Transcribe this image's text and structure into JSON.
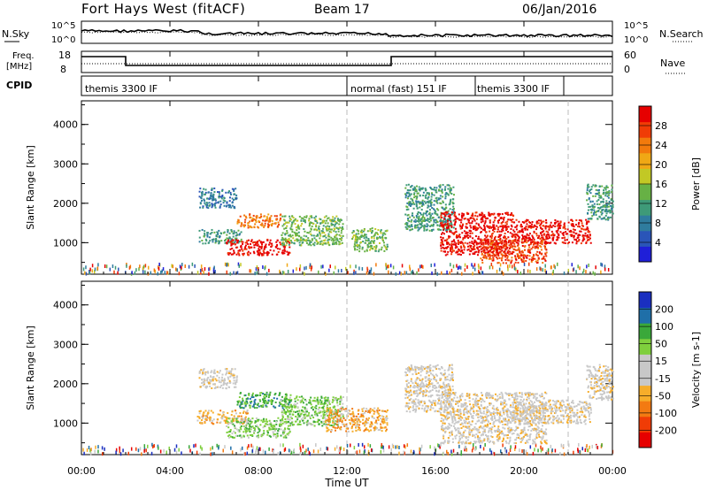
{
  "header": {
    "station": "Fort Hays West (fitACF)",
    "beam": "Beam 17",
    "date": "06/Jan/2016"
  },
  "panel_labels": {
    "nsky": "N.Sky",
    "nsearch": "N.Search",
    "freq_line1": "Freq.",
    "freq_line2": "[MHz]",
    "nave": "Nave",
    "cpid": "CPID"
  },
  "noise_ticks": {
    "top": "10^5",
    "bottom": "10^0"
  },
  "freq_ticks": {
    "left_top": "18",
    "left_bottom": "8",
    "right_top": "60",
    "right_bottom": "0"
  },
  "cpid_segments": [
    {
      "label": "themis 3300 IF",
      "start_h": 0,
      "end_h": 12
    },
    {
      "label": "normal (fast) 151 IF",
      "start_h": 12,
      "end_h": 17.8
    },
    {
      "label": "themis 3300 IF",
      "start_h": 17.8,
      "end_h": 21.8
    }
  ],
  "colors": {
    "power": [
      "#1f1fd8",
      "#2a55b8",
      "#2f7c9e",
      "#3e9a78",
      "#67b145",
      "#c2c825",
      "#f0a815",
      "#f27a0c",
      "#f03c06",
      "#e60000"
    ],
    "velocity": [
      "#e60000",
      "#f03c06",
      "#f37a12",
      "#f6ad2a",
      "#c8c8c8",
      "#c8c8c8",
      "#7fcf3d",
      "#3aa83a",
      "#1f6fa8",
      "#1a2fc0"
    ]
  },
  "chart_data": [
    {
      "type": "heatmap",
      "name": "power",
      "ylabel": "Slant Range [km]",
      "y_ticks": [
        "1000",
        "2000",
        "3000",
        "4000"
      ],
      "ylim": [
        200,
        4600
      ],
      "xlim_hours": [
        0,
        24
      ],
      "colorbar_label": "Power [dB]",
      "colorbar_ticks": [
        "4",
        "8",
        "12",
        "16",
        "20",
        "24",
        "28"
      ],
      "colorbar_range": [
        0,
        32
      ],
      "regions": [
        {
          "t0": 5.3,
          "t1": 7.0,
          "r0": 1900,
          "r1": 2400,
          "level": 2
        },
        {
          "t0": 5.3,
          "t1": 7.2,
          "r0": 1000,
          "r1": 1350,
          "level": 3
        },
        {
          "t0": 6.5,
          "t1": 9.4,
          "r0": 700,
          "r1": 1100,
          "level": 9
        },
        {
          "t0": 7.0,
          "t1": 9.0,
          "r0": 1400,
          "r1": 1750,
          "level": 7
        },
        {
          "t0": 9.0,
          "t1": 11.8,
          "r0": 950,
          "r1": 1700,
          "level": 4
        },
        {
          "t0": 12.2,
          "t1": 13.8,
          "r0": 800,
          "r1": 1400,
          "level": 4
        },
        {
          "t0": 14.6,
          "t1": 16.8,
          "r0": 1300,
          "r1": 2500,
          "level": 3
        },
        {
          "t0": 16.2,
          "t1": 19.5,
          "r0": 700,
          "r1": 1800,
          "level": 9
        },
        {
          "t0": 18.0,
          "t1": 21.0,
          "r0": 500,
          "r1": 1100,
          "level": 8
        },
        {
          "t0": 19.5,
          "t1": 23.0,
          "r0": 1000,
          "r1": 1600,
          "level": 9
        },
        {
          "t0": 22.8,
          "t1": 24.0,
          "r0": 1600,
          "r1": 2500,
          "level": 3
        }
      ]
    },
    {
      "type": "heatmap",
      "name": "velocity",
      "ylabel": "Slant Range [km]",
      "y_ticks": [
        "1000",
        "2000",
        "3000",
        "4000"
      ],
      "ylim": [
        200,
        4600
      ],
      "xlim_hours": [
        0,
        24
      ],
      "colorbar_label": "Velocity [m s-1]",
      "colorbar_ticks": [
        "200",
        "100",
        "50",
        "15",
        "-15",
        "-50",
        "-100",
        "-200"
      ],
      "regions": [
        {
          "t0": 5.3,
          "t1": 7.0,
          "r0": 1900,
          "r1": 2400,
          "level": 4
        },
        {
          "t0": 5.2,
          "t1": 7.5,
          "r0": 1000,
          "r1": 1350,
          "level": 3
        },
        {
          "t0": 6.5,
          "t1": 9.4,
          "r0": 650,
          "r1": 1150,
          "level": 6
        },
        {
          "t0": 7.0,
          "t1": 9.5,
          "r0": 1400,
          "r1": 1800,
          "level": 7
        },
        {
          "t0": 9.0,
          "t1": 11.8,
          "r0": 950,
          "r1": 1700,
          "level": 6
        },
        {
          "t0": 11.0,
          "t1": 13.8,
          "r0": 800,
          "r1": 1400,
          "level": 3
        },
        {
          "t0": 14.6,
          "t1": 16.8,
          "r0": 1300,
          "r1": 2500,
          "level": 4
        },
        {
          "t0": 16.2,
          "t1": 21.0,
          "r0": 500,
          "r1": 1800,
          "level": 4
        },
        {
          "t0": 19.5,
          "t1": 23.0,
          "r0": 1000,
          "r1": 1600,
          "level": 4
        },
        {
          "t0": 22.8,
          "t1": 24.0,
          "r0": 1600,
          "r1": 2500,
          "level": 4
        }
      ]
    }
  ],
  "x_axis": {
    "ticks": [
      "00:00",
      "04:00",
      "08:00",
      "12:00",
      "16:00",
      "20:00",
      "00:00"
    ],
    "label": "Time UT"
  }
}
